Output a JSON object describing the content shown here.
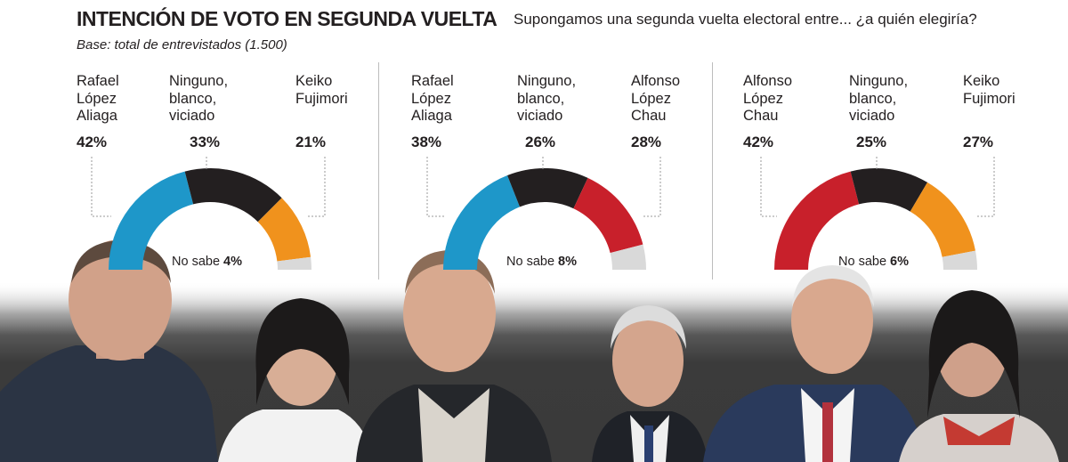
{
  "header": {
    "title": "INTENCIÓN DE VOTO EN SEGUNDA VUELTA",
    "question": "Supongamos una segunda vuelta electoral entre... ¿a quién elegiría?",
    "base": "Base: total de entrevistados (1.500)"
  },
  "chart_data": [
    {
      "type": "pie",
      "categories": [
        "Rafael\nLópez\nAliaga",
        "Ninguno,\nblanco,\nviciado",
        "Keiko\nFujimori",
        "No sabe"
      ],
      "values": [
        42,
        33,
        21,
        4
      ],
      "value_labels": [
        "42%",
        "33%",
        "21%",
        "4%"
      ],
      "colors": [
        "#1e97c9",
        "#231f20",
        "#f0921d",
        "#d9d9d9"
      ],
      "nosabe_label": "No sabe"
    },
    {
      "type": "pie",
      "categories": [
        "Rafael\nLópez\nAliaga",
        "Ninguno,\nblanco,\nviciado",
        "Alfonso\nLópez\nChau",
        "No sabe"
      ],
      "values": [
        38,
        26,
        28,
        8
      ],
      "value_labels": [
        "38%",
        "26%",
        "28%",
        "8%"
      ],
      "colors": [
        "#1e97c9",
        "#231f20",
        "#c8202b",
        "#d9d9d9"
      ],
      "nosabe_label": "No sabe"
    },
    {
      "type": "pie",
      "categories": [
        "Alfonso\nLópez\nChau",
        "Ninguno,\nblanco,\nviciado",
        "Keiko\nFujimori",
        "No sabe"
      ],
      "values": [
        42,
        25,
        27,
        6
      ],
      "value_labels": [
        "42%",
        "25%",
        "27%",
        "6%"
      ],
      "colors": [
        "#c8202b",
        "#231f20",
        "#f0921d",
        "#d9d9d9"
      ],
      "nosabe_label": "No sabe"
    }
  ]
}
